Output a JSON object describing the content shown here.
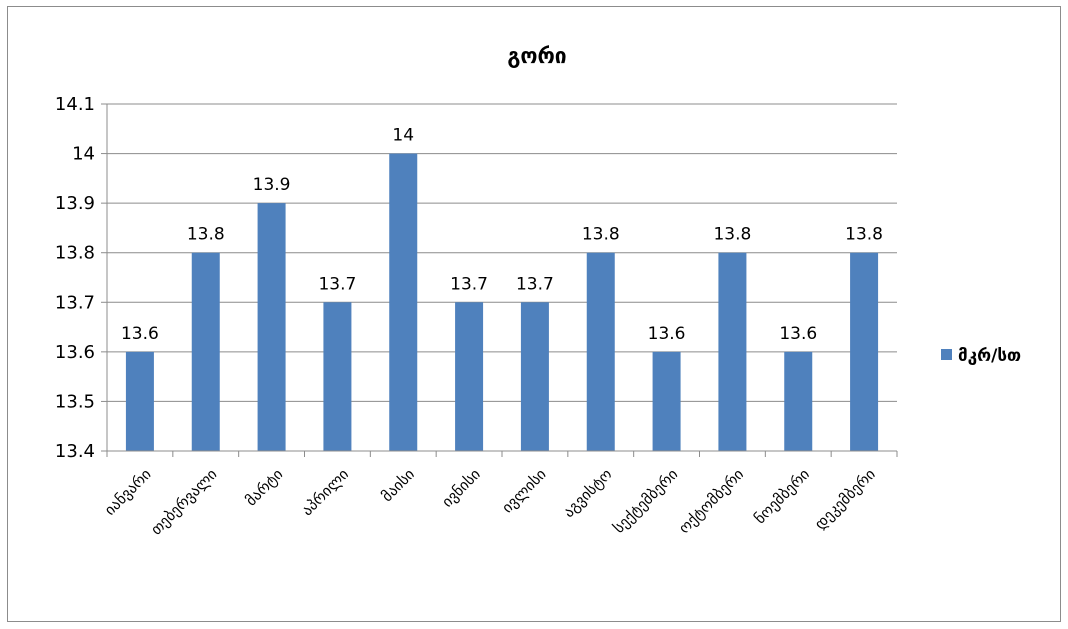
{
  "chart_data": {
    "type": "bar",
    "title": "გორი",
    "categories": [
      "იანვარი",
      "თებერვალი",
      "მარტი",
      "აპრილი",
      "მაისი",
      "ივნისი",
      "ივლისი",
      "აგვისტო",
      "სექტემბერი",
      "ოქტომბერი",
      "ნოემბერი",
      "დეკემბერი"
    ],
    "series": [
      {
        "name": "მკრ/სთ",
        "values": [
          13.6,
          13.8,
          13.9,
          13.7,
          14,
          13.7,
          13.7,
          13.8,
          13.6,
          13.8,
          13.6,
          13.8
        ]
      }
    ],
    "data_labels": [
      "13.6",
      "13.8",
      "13.9",
      "13.7",
      "14",
      "13.7",
      "13.7",
      "13.8",
      "13.6",
      "13.8",
      "13.6",
      "13.8"
    ],
    "ylim": [
      13.4,
      14.1
    ],
    "yticks": [
      "13.4",
      "13.5",
      "13.6",
      "13.7",
      "13.8",
      "13.9",
      "14",
      "14.1"
    ],
    "xlabel": "",
    "ylabel": "",
    "grid": true,
    "legend_position": "right",
    "colors": {
      "bar": "#4f81bd",
      "grid": "#8c8c8c",
      "axis": "#8c8c8c"
    }
  }
}
